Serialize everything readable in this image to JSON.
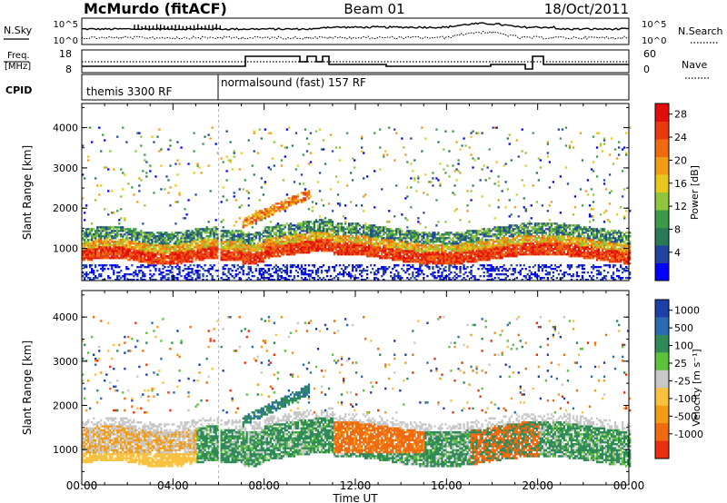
{
  "header": {
    "station": "McMurdo (fitACF)",
    "beam": "Beam 01",
    "date": "18/Oct/2011"
  },
  "top_panels": {
    "nsky": {
      "label": "N.Sky",
      "ticks": [
        "10^5",
        "10^0"
      ]
    },
    "nsearch": {
      "label": "N.Search",
      "ticks": [
        "10^5",
        "10^0"
      ]
    },
    "freq": {
      "label_line1": "Freq.",
      "label_line2": "[MHz]",
      "ticks": [
        "18",
        "8"
      ]
    },
    "nave": {
      "label": "Nave",
      "ticks": [
        "60",
        "0"
      ]
    },
    "cpid": {
      "label": "CPID",
      "segments": [
        "themis 3300 RF",
        "normalsound (fast) 157 RF"
      ]
    }
  },
  "chart_data": [
    {
      "type": "heatmap",
      "quantity": "Power",
      "ylabel": "Slant Range [km]",
      "xlabel": "Time UT",
      "x_ticks": [
        "00:00",
        "04:00",
        "08:00",
        "12:00",
        "16:00",
        "20:00",
        "00:00"
      ],
      "y_ticks": [
        1000,
        2000,
        3000,
        4000
      ],
      "ylim": [
        200,
        4600
      ],
      "xlim_hours": [
        0,
        24
      ],
      "colorbar": {
        "label": "Power [dB]",
        "ticks": [
          "4",
          "8",
          "12",
          "16",
          "20",
          "24",
          "28"
        ],
        "colors": [
          "#0000ff",
          "#22449e",
          "#2a7a55",
          "#3c9a48",
          "#8fc63c",
          "#e8c81a",
          "#f29b16",
          "#f06a10",
          "#e73a0e",
          "#e30c0c"
        ]
      }
    },
    {
      "type": "heatmap",
      "quantity": "Velocity",
      "ylabel": "Slant Range [km]",
      "xlabel": "Time UT",
      "x_ticks": [
        "00:00",
        "04:00",
        "08:00",
        "12:00",
        "16:00",
        "20:00",
        "00:00"
      ],
      "y_ticks": [
        1000,
        2000,
        3000,
        4000
      ],
      "ylim": [
        200,
        4600
      ],
      "xlim_hours": [
        0,
        24
      ],
      "colorbar": {
        "label": "Velocity [m s⁻¹]",
        "ticks": [
          "1000",
          "500",
          "100",
          "25",
          "-25",
          "-100",
          "-500",
          "-1000"
        ],
        "colors": [
          "#1d3fa8",
          "#2b6ab0",
          "#2f8a58",
          "#5cc23a",
          "#c8c8c8",
          "#f8c240",
          "#f29b16",
          "#ef6a10",
          "#e8300c"
        ]
      }
    }
  ]
}
